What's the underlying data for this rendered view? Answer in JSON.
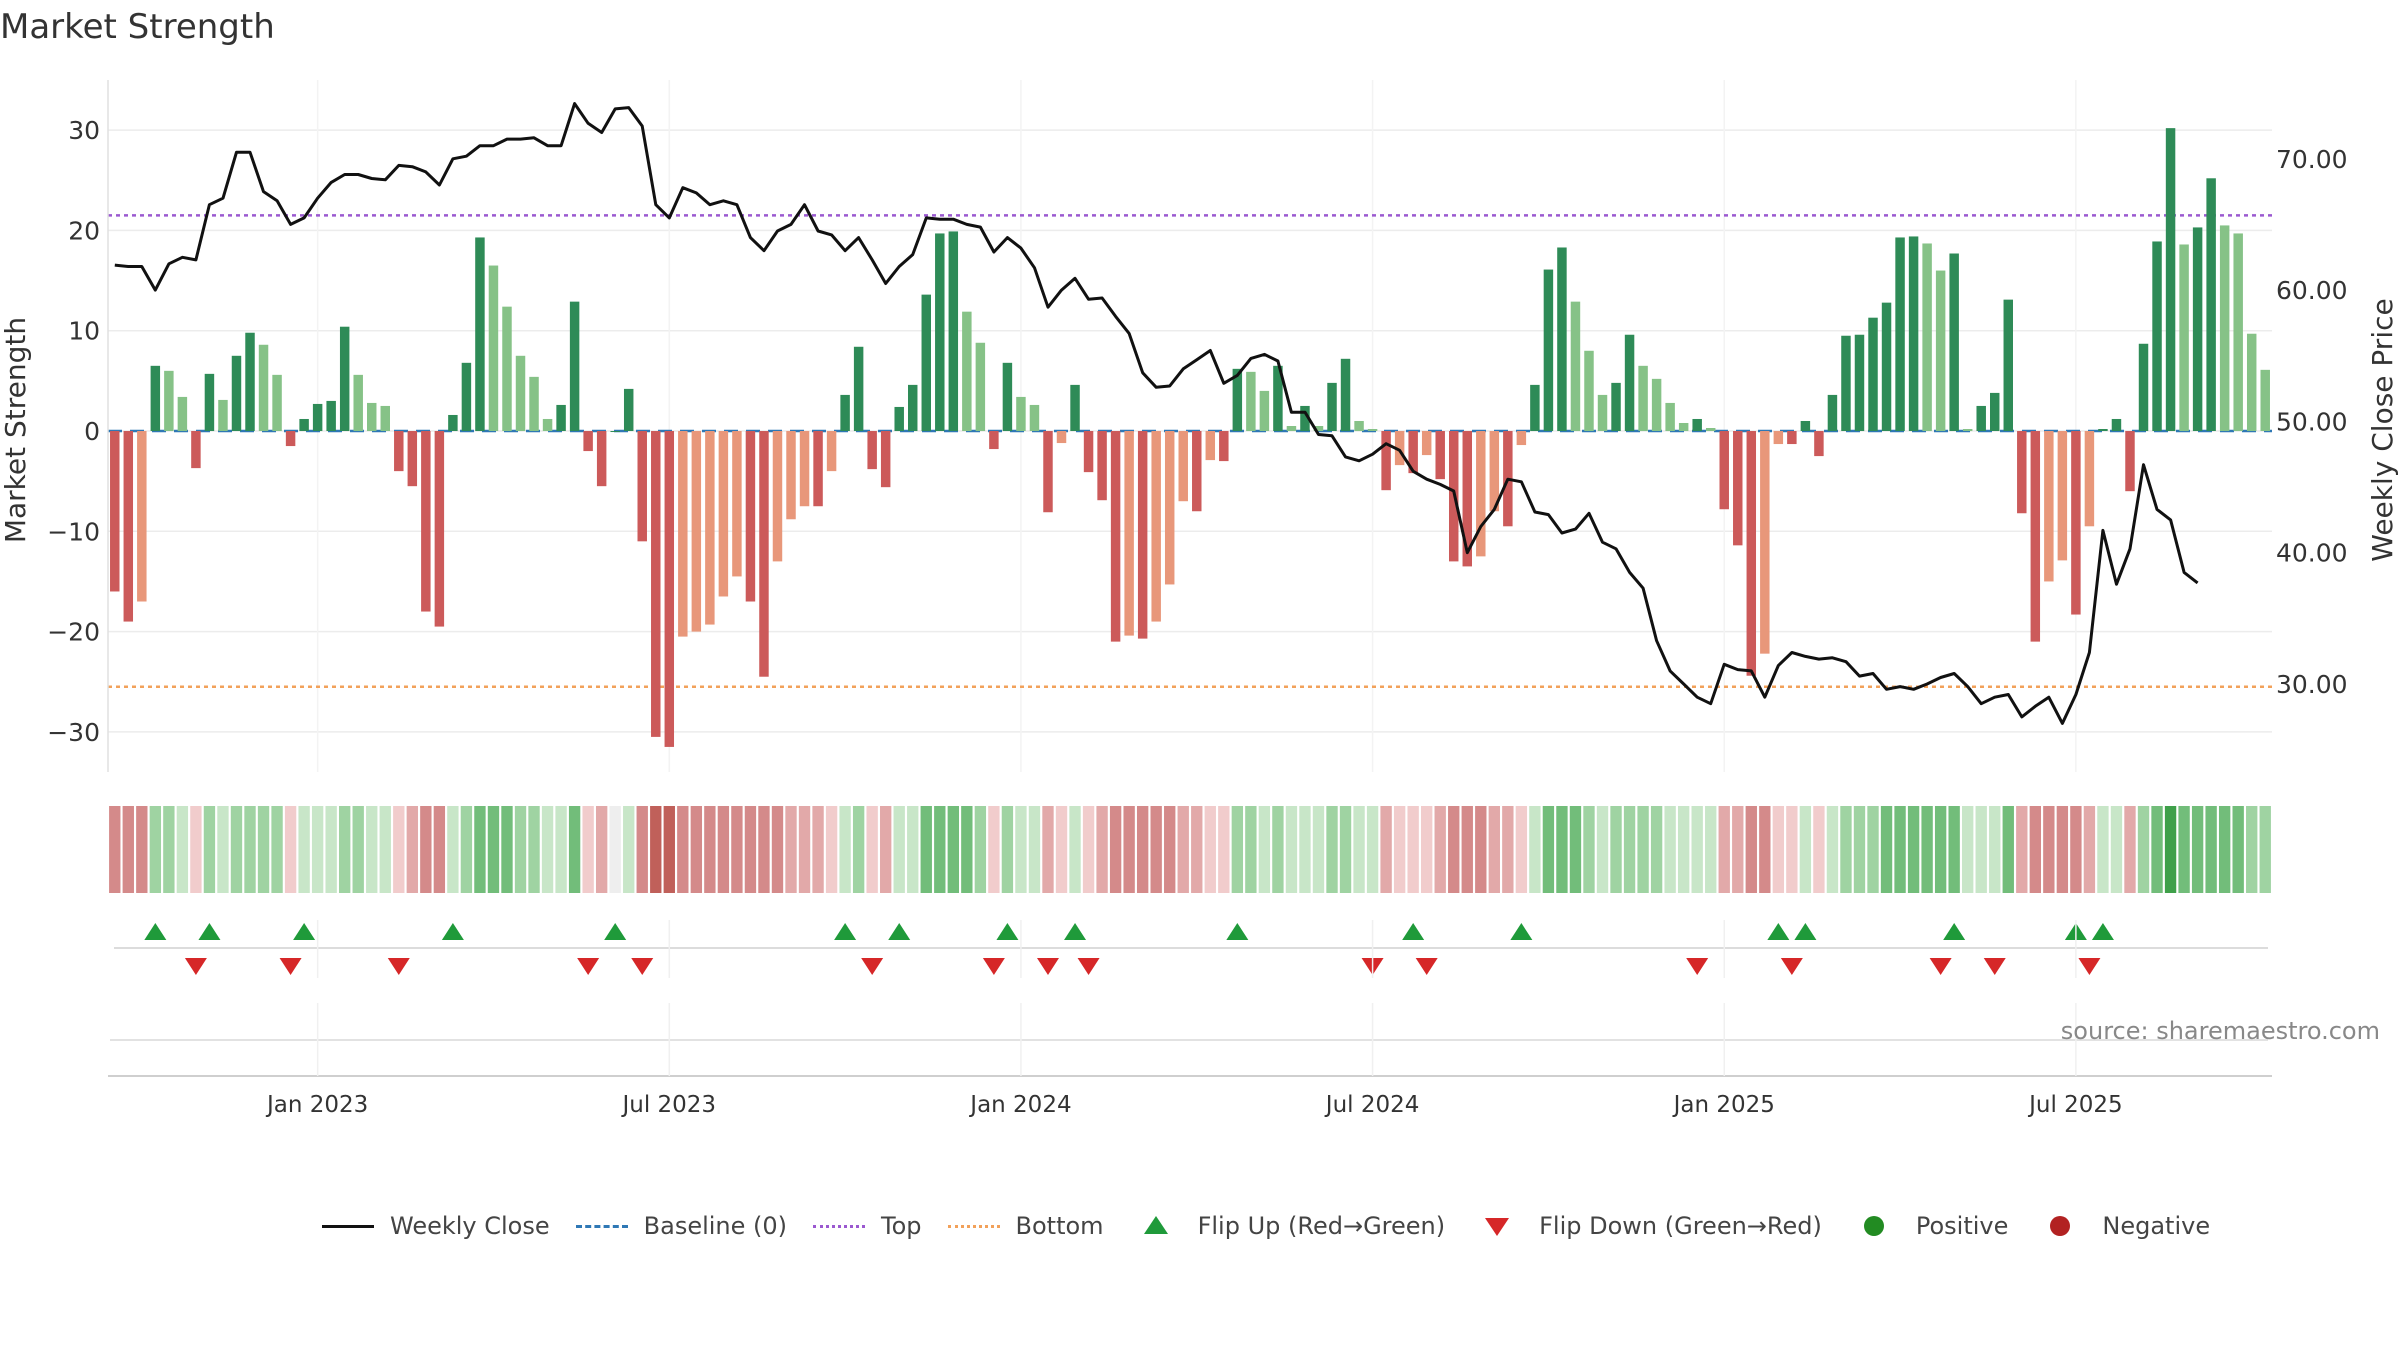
{
  "chart_data": {
    "type": "bar",
    "title": "Market Strength",
    "ylabel": "Market Strength",
    "y2label": "Weekly Close Price",
    "ylim": [
      -34,
      35
    ],
    "y2lim": [
      23.3,
      76.0
    ],
    "yticks": [
      30,
      20,
      10,
      0,
      -10,
      -20,
      -30
    ],
    "ytick_labels": [
      "30",
      "20",
      "10",
      "0",
      "−10",
      "−20",
      "−30"
    ],
    "y2ticks": [
      70,
      60,
      50,
      40,
      30
    ],
    "y2tick_labels": [
      "70.00",
      "60.00",
      "50.00",
      "40.00",
      "30.00"
    ],
    "xtick_labels": [
      "Jan 2023",
      "Jul 2023",
      "Jan 2024",
      "Jul 2024",
      "Jan 2025",
      "Jul 2025"
    ],
    "xtick_weeks": [
      15,
      41,
      67,
      93,
      119,
      145
    ],
    "top_level": 21.5,
    "bottom_level": -25.5,
    "grid": true,
    "legend_position": "bottom",
    "source_text": "source: sharemaestro.com",
    "colors": {
      "pos_strong": "#2e8b57",
      "pos_weak": "#86c287",
      "neg_strong": "#cc5a5a",
      "neg_weak": "#e8977a",
      "price": "#111111",
      "baseline": "#2f78b5",
      "top": "#9b59d0",
      "bottom": "#f2a15a",
      "flip_up": "#1f9a3a",
      "flip_down": "#d62728"
    },
    "series": [
      {
        "name": "Market Strength",
        "values": [
          -16,
          -19,
          -17,
          6.5,
          6,
          3.4,
          -3.7,
          5.7,
          3.1,
          7.5,
          9.8,
          8.6,
          5.6,
          -1.5,
          1.2,
          2.7,
          3,
          10.4,
          5.6,
          2.8,
          2.5,
          -4,
          -5.5,
          -18,
          -19.5,
          1.6,
          6.8,
          19.3,
          16.5,
          12.4,
          7.5,
          5.4,
          1.2,
          2.6,
          12.9,
          -2,
          -5.5,
          0,
          4.2,
          -11,
          -30.5,
          -31.5,
          -20.5,
          -20,
          -19.3,
          -16.5,
          -14.5,
          -17,
          -24.5,
          -13,
          -8.8,
          -7.5,
          -7.5,
          -4,
          3.6,
          8.4,
          -3.8,
          -5.6,
          2.4,
          4.6,
          13.6,
          19.7,
          19.9,
          11.9,
          8.8,
          -1.8,
          6.8,
          3.4,
          2.6,
          -8.1,
          -1.2,
          4.6,
          -4.1,
          -6.9,
          -21,
          -20.4,
          -20.7,
          -19,
          -15.3,
          -7,
          -8,
          -2.9,
          -3,
          6.2,
          5.9,
          4,
          6.5,
          0.5,
          2.5,
          0.5,
          4.8,
          7.2,
          1,
          0.2,
          -5.9,
          -3.4,
          -4.2,
          -2.4,
          -4.8,
          -13,
          -13.5,
          -12.5,
          -8,
          -9.5,
          -1.4,
          4.6,
          16.1,
          18.3,
          12.9,
          8,
          3.6,
          4.8,
          9.6,
          6.5,
          5.2,
          2.8,
          0.8,
          1.2,
          0.3,
          -7.8,
          -11.4,
          -24.4,
          -22.2,
          -1.3,
          -1.3,
          1,
          -2.5,
          3.6,
          9.5,
          9.6,
          11.3,
          12.8,
          19.3,
          19.4,
          18.7,
          16,
          17.7,
          0.2,
          2.5,
          3.8,
          13.1,
          -8.2,
          -21,
          -15,
          -12.9,
          -18.3,
          -9.5,
          0.2,
          1.2,
          -6,
          8.7,
          18.9,
          30.2,
          18.6,
          20.3,
          25.2,
          20.5,
          19.7,
          9.7,
          6.1
        ]
      },
      {
        "name": "Weekly Close",
        "values": [
          61.9,
          61.8,
          61.8,
          60.0,
          62.0,
          62.5,
          62.3,
          66.5,
          67.0,
          70.5,
          70.5,
          67.5,
          66.8,
          65.0,
          65.5,
          67.0,
          68.2,
          68.8,
          68.8,
          68.5,
          68.4,
          69.5,
          69.4,
          69.0,
          68.0,
          70.0,
          70.2,
          71.0,
          71.0,
          71.5,
          71.5,
          71.6,
          71.0,
          71.0,
          74.2,
          72.7,
          72.0,
          73.8,
          73.9,
          72.5,
          66.5,
          65.5,
          67.8,
          67.4,
          66.5,
          66.8,
          66.5,
          64.0,
          63.0,
          64.5,
          65.0,
          66.5,
          64.5,
          64.2,
          63.0,
          64.0,
          62.3,
          60.5,
          61.8,
          62.7,
          65.5,
          65.4,
          65.4,
          65.0,
          64.8,
          62.9,
          64.0,
          63.2,
          61.7,
          58.7,
          60.0,
          60.9,
          59.3,
          59.4,
          58.0,
          56.7,
          53.7,
          52.6,
          52.7,
          54.0,
          54.7,
          55.4,
          52.9,
          53.5,
          54.8,
          55.1,
          54.6,
          50.7,
          50.7,
          49.0,
          48.9,
          47.3,
          47.0,
          47.5,
          48.3,
          47.8,
          46.2,
          45.6,
          45.2,
          44.7,
          40.0,
          42.0,
          43.3,
          45.6,
          45.4,
          43.1,
          42.9,
          41.5,
          41.8,
          43.0,
          40.8,
          40.3,
          38.5,
          37.3,
          33.3,
          31.0,
          30.0,
          29.0,
          28.5,
          31.5,
          31.1,
          31.0,
          29.0,
          31.4,
          32.4,
          32.1,
          31.9,
          32.0,
          31.7,
          30.6,
          30.8,
          29.6,
          29.8,
          29.6,
          30.0,
          30.5,
          30.8,
          29.8,
          28.5,
          29.0,
          29.2,
          27.5,
          28.3,
          29.0,
          27.0,
          29.2,
          32.4,
          41.7,
          37.6,
          40.3,
          46.7,
          43.3,
          42.5,
          38.5,
          37.7
        ]
      }
    ],
    "heat_strip": [
      -3,
      -3,
      -3,
      2,
      2,
      1,
      -1,
      2,
      1,
      2,
      2,
      2,
      2,
      -1,
      1,
      1,
      1,
      2,
      2,
      1,
      1,
      -1,
      -2,
      -3,
      -3,
      1,
      2,
      3,
      3,
      3,
      2,
      2,
      1,
      1,
      3,
      -1,
      -2,
      0,
      1,
      -3,
      -4,
      -4,
      -3,
      -3,
      -3,
      -3,
      -3,
      -3,
      -3,
      -3,
      -2,
      -2,
      -2,
      -1,
      1,
      2,
      -1,
      -2,
      1,
      1,
      3,
      3,
      3,
      3,
      2,
      -1,
      2,
      1,
      1,
      -2,
      -1,
      1,
      -1,
      -2,
      -3,
      -3,
      -3,
      -3,
      -3,
      -2,
      -2,
      -1,
      -1,
      2,
      2,
      1,
      2,
      1,
      1,
      1,
      2,
      2,
      1,
      1,
      -2,
      -1,
      -1,
      -1,
      -2,
      -3,
      -3,
      -3,
      -2,
      -2,
      -1,
      1,
      3,
      3,
      3,
      2,
      1,
      2,
      2,
      2,
      2,
      1,
      1,
      1,
      1,
      -2,
      -2,
      -3,
      -3,
      -1,
      -1,
      1,
      -1,
      1,
      2,
      2,
      2,
      3,
      3,
      3,
      3,
      3,
      3,
      1,
      1,
      1,
      3,
      -2,
      -3,
      -3,
      -3,
      -3,
      -2,
      1,
      1,
      -2,
      2,
      3,
      4,
      3,
      3,
      3,
      3,
      3,
      2,
      2
    ],
    "flips_up": [
      3,
      7,
      14,
      25,
      37,
      54,
      58,
      66,
      71,
      83,
      96,
      104,
      123,
      125,
      136,
      145,
      147
    ],
    "flips_down": [
      6,
      13,
      21,
      35,
      39,
      56,
      65,
      69,
      72,
      93,
      97,
      117,
      124,
      135,
      139,
      146
    ]
  },
  "legend": {
    "items": [
      {
        "label": "Weekly Close",
        "symbol": "line-solid"
      },
      {
        "label": "Baseline (0)",
        "symbol": "line-dash"
      },
      {
        "label": "Top",
        "symbol": "line-dot-purple"
      },
      {
        "label": "Bottom",
        "symbol": "line-dot-orange"
      },
      {
        "label": "Flip Up (Red→Green)",
        "symbol": "triangle-up"
      },
      {
        "label": "Flip Down (Green→Red)",
        "symbol": "triangle-down"
      },
      {
        "label": "Positive",
        "symbol": "circle-green"
      },
      {
        "label": "Negative",
        "symbol": "circle-red"
      }
    ],
    "circle_colors": {
      "positive": "#228b22",
      "negative": "#b22222"
    }
  }
}
